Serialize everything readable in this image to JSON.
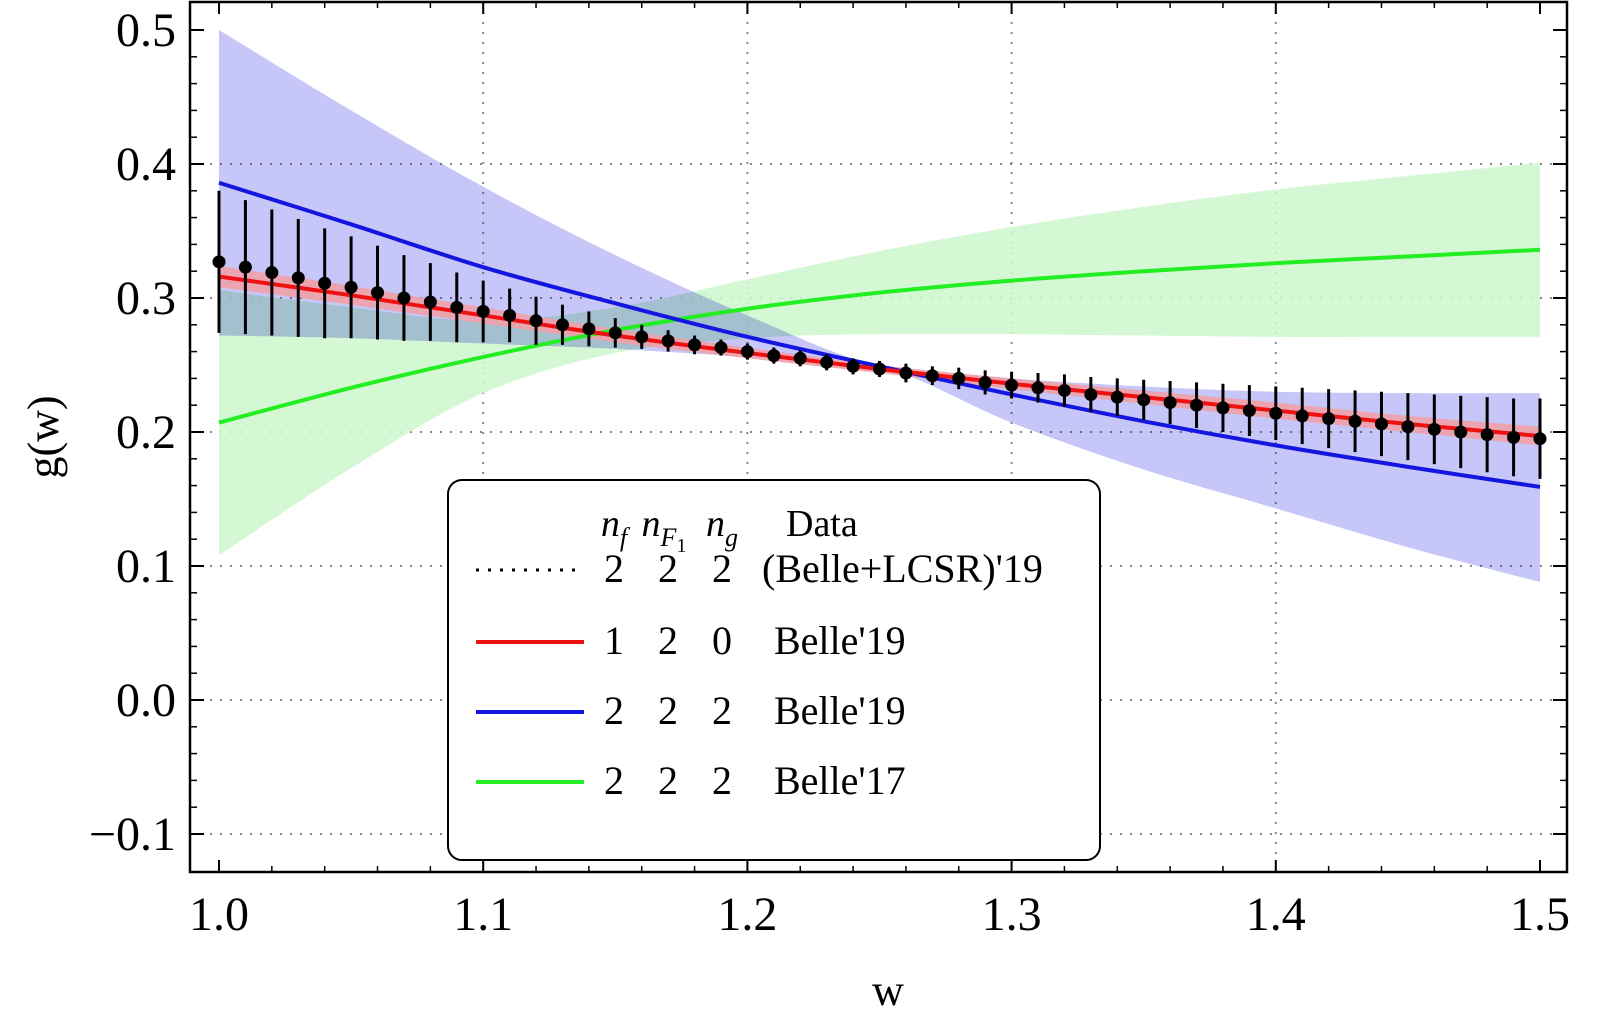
{
  "chart_data": {
    "type": "line",
    "title": "",
    "xlabel": "w",
    "ylabel": "g(w)",
    "xlim": [
      1.0,
      1.5
    ],
    "ylim": [
      -0.1,
      0.5
    ],
    "x_ticks": [
      "1.0",
      "1.1",
      "1.2",
      "1.3",
      "1.4",
      "1.5"
    ],
    "x_tick_values": [
      1.0,
      1.1,
      1.2,
      1.3,
      1.4,
      1.5
    ],
    "y_ticks": [
      "−0.1",
      "0.0",
      "0.1",
      "0.2",
      "0.3",
      "0.4",
      "0.5"
    ],
    "y_tick_values": [
      -0.1,
      0.0,
      0.1,
      0.2,
      0.3,
      0.4,
      0.5
    ],
    "grid": "dotted",
    "series": [
      {
        "name": "Belle'17 (2 2 2)",
        "color": "#22ee22",
        "band_color": "#ccf7cc",
        "w": [
          1.0,
          1.05,
          1.1,
          1.15,
          1.2,
          1.25,
          1.3,
          1.35,
          1.4,
          1.45,
          1.5
        ],
        "central": [
          0.207,
          0.233,
          0.256,
          0.276,
          0.292,
          0.304,
          0.313,
          0.32,
          0.326,
          0.331,
          0.336
        ],
        "lower": [
          0.108,
          0.173,
          0.229,
          0.259,
          0.27,
          0.273,
          0.273,
          0.272,
          0.271,
          0.271,
          0.271
        ],
        "upper": [
          0.306,
          0.293,
          0.283,
          0.293,
          0.314,
          0.335,
          0.353,
          0.368,
          0.381,
          0.391,
          0.401
        ]
      },
      {
        "name": "Belle'19 (2 2 2)",
        "color": "#1515e0",
        "band_color": "#bcbcf7",
        "w": [
          1.0,
          1.05,
          1.1,
          1.15,
          1.2,
          1.25,
          1.3,
          1.35,
          1.4,
          1.45,
          1.5
        ],
        "central": [
          0.386,
          0.355,
          0.323,
          0.296,
          0.271,
          0.249,
          0.228,
          0.208,
          0.19,
          0.174,
          0.159
        ],
        "lower": [
          0.272,
          0.27,
          0.266,
          0.262,
          0.256,
          0.249,
          0.207,
          0.172,
          0.143,
          0.114,
          0.088
        ],
        "upper": [
          0.5,
          0.44,
          0.383,
          0.332,
          0.287,
          0.249,
          0.24,
          0.234,
          0.23,
          0.229,
          0.229
        ]
      },
      {
        "name": "Belle'19 (1 2 0)",
        "color": "#ee1111",
        "band_color": "#f0a0a8",
        "w": [
          1.0,
          1.05,
          1.1,
          1.15,
          1.2,
          1.25,
          1.3,
          1.35,
          1.4,
          1.45,
          1.5
        ],
        "central": [
          0.316,
          0.302,
          0.287,
          0.272,
          0.259,
          0.247,
          0.236,
          0.226,
          0.216,
          0.206,
          0.197
        ],
        "half_width": [
          0.008,
          0.007,
          0.006,
          0.005,
          0.004,
          0.003,
          0.004,
          0.005,
          0.006,
          0.006,
          0.007
        ]
      }
    ],
    "points": {
      "name": "(Belle+LCSR)'19 (2 2 2)",
      "color": "#000000",
      "x": [
        1.0,
        1.01,
        1.02,
        1.03,
        1.04,
        1.05,
        1.06,
        1.07,
        1.08,
        1.09,
        1.1,
        1.11,
        1.12,
        1.13,
        1.14,
        1.15,
        1.16,
        1.17,
        1.18,
        1.19,
        1.2,
        1.21,
        1.22,
        1.23,
        1.24,
        1.25,
        1.26,
        1.27,
        1.28,
        1.29,
        1.3,
        1.31,
        1.32,
        1.33,
        1.34,
        1.35,
        1.36,
        1.37,
        1.38,
        1.39,
        1.4,
        1.41,
        1.42,
        1.43,
        1.44,
        1.45,
        1.46,
        1.47,
        1.48,
        1.49,
        1.5
      ],
      "y": [
        0.327,
        0.323,
        0.319,
        0.315,
        0.311,
        0.308,
        0.304,
        0.3,
        0.297,
        0.293,
        0.29,
        0.287,
        0.283,
        0.28,
        0.277,
        0.274,
        0.271,
        0.268,
        0.265,
        0.263,
        0.26,
        0.257,
        0.255,
        0.252,
        0.249,
        0.247,
        0.244,
        0.242,
        0.24,
        0.237,
        0.235,
        0.233,
        0.231,
        0.228,
        0.226,
        0.224,
        0.222,
        0.22,
        0.218,
        0.216,
        0.214,
        0.212,
        0.21,
        0.208,
        0.206,
        0.204,
        0.202,
        0.2,
        0.198,
        0.196,
        0.195
      ],
      "err": [
        0.053,
        0.05,
        0.047,
        0.044,
        0.041,
        0.038,
        0.035,
        0.032,
        0.029,
        0.026,
        0.023,
        0.02,
        0.018,
        0.015,
        0.013,
        0.011,
        0.009,
        0.008,
        0.007,
        0.006,
        0.006,
        0.006,
        0.006,
        0.006,
        0.006,
        0.006,
        0.007,
        0.007,
        0.008,
        0.009,
        0.01,
        0.011,
        0.012,
        0.013,
        0.014,
        0.015,
        0.016,
        0.017,
        0.018,
        0.019,
        0.02,
        0.021,
        0.022,
        0.023,
        0.024,
        0.025,
        0.026,
        0.027,
        0.028,
        0.029,
        0.03
      ]
    },
    "legend": {
      "position": "bottom-center",
      "header": {
        "c1": "n",
        "c1_sub": "f",
        "c2": "n",
        "c2_sub": "F",
        "c2_subsub": "1",
        "c3": "n",
        "c3_sub": "g",
        "data": "Data"
      },
      "rows": [
        {
          "style": "dotted",
          "color": "#000000",
          "nf": "2",
          "nF1": "2",
          "ng": "2",
          "data": "(Belle+LCSR)'19"
        },
        {
          "style": "solid",
          "color": "#ee1111",
          "nf": "1",
          "nF1": "2",
          "ng": "0",
          "data": "Belle'19"
        },
        {
          "style": "solid",
          "color": "#1515e0",
          "nf": "2",
          "nF1": "2",
          "ng": "2",
          "data": "Belle'19"
        },
        {
          "style": "solid",
          "color": "#22ee22",
          "nf": "2",
          "nF1": "2",
          "ng": "2",
          "data": "Belle'17"
        }
      ]
    }
  }
}
